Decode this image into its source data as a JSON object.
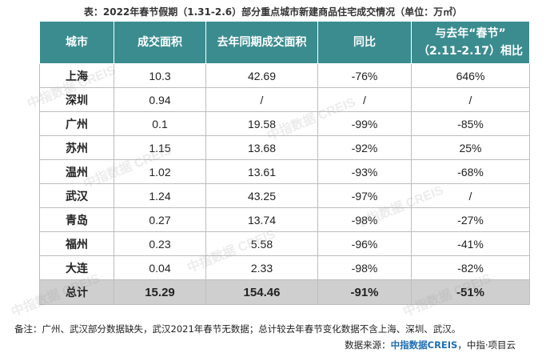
{
  "title": "表：2022年春节假期（1.31-2.6）部分重点城市新建商品住宅成交情况（单位：万㎡）",
  "table": {
    "headers": [
      "城市",
      "成交面积",
      "去年同期成交面积",
      "同比",
      "与去年“春节”",
      "（2.11-2.17）相比"
    ],
    "rows": [
      [
        "上海",
        "10.3",
        "42.69",
        "-76%",
        "646%"
      ],
      [
        "深圳",
        "0.94",
        "/",
        "/",
        "/"
      ],
      [
        "广州",
        "0.1",
        "19.58",
        "-99%",
        "-85%"
      ],
      [
        "苏州",
        "1.15",
        "13.68",
        "-92%",
        "25%"
      ],
      [
        "温州",
        "1.02",
        "13.61",
        "-93%",
        "-68%"
      ],
      [
        "武汉",
        "1.24",
        "43.25",
        "-97%",
        "/"
      ],
      [
        "青岛",
        "0.27",
        "13.74",
        "-98%",
        "-27%"
      ],
      [
        "福州",
        "0.23",
        "5.58",
        "-96%",
        "-41%"
      ],
      [
        "大连",
        "0.04",
        "2.33",
        "-98%",
        "-82%"
      ]
    ],
    "total": [
      "总计",
      "15.29",
      "154.46",
      "-91%",
      "-51%"
    ]
  },
  "note": "备注：广州、武汉部分数据缺失，武汉2021年春节无数据；总计较去年春节变化数据不含上海、深圳、武汉。",
  "source": {
    "prefix": "数据来源：",
    "brand": "中指数据CREIS",
    "suffix": "，中指·项目云"
  },
  "watermark": "中指数据 CREIS",
  "colors": {
    "header_bg": "#3a8c8f",
    "total_bg": "#cfcfcf"
  }
}
